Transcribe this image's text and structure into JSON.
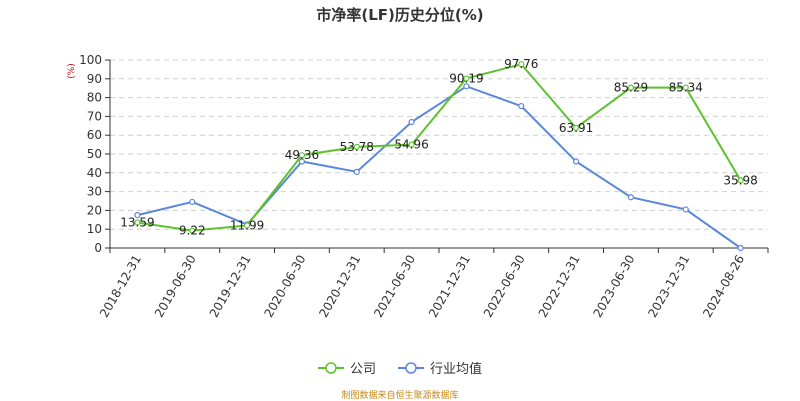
{
  "title": "市净率(LF)历史分位(%)",
  "unit_label": "(%)",
  "source": "制图数据来自恒生聚源数据库",
  "colors": {
    "company": "#5ec22f",
    "industry": "#5b87d8",
    "grid": "#cfcfcf",
    "axis": "#333333"
  },
  "chart_data": {
    "type": "line",
    "title": "市净率(LF)历史分位(%)",
    "ylabel": "(%)",
    "ylim": [
      0,
      100
    ],
    "yticks": [
      0,
      10,
      20,
      30,
      40,
      50,
      60,
      70,
      80,
      90,
      100
    ],
    "grid": true,
    "legend_position": "bottom",
    "categories": [
      "2018-12-31",
      "2019-06-30",
      "2019-12-31",
      "2020-06-30",
      "2020-12-31",
      "2021-06-30",
      "2021-12-31",
      "2022-06-30",
      "2022-12-31",
      "2023-06-30",
      "2023-12-31",
      "2024-08-26"
    ],
    "series": [
      {
        "name": "公司",
        "color": "#5ec22f",
        "values": [
          13.59,
          9.22,
          11.99,
          49.36,
          53.78,
          54.96,
          90.19,
          97.76,
          63.91,
          85.29,
          85.34,
          35.98
        ],
        "labels": [
          "13.59",
          "9.22",
          "11.99",
          "49.36",
          "53.78",
          "54.96",
          "90.19",
          "97.76",
          "63.91",
          "85.29",
          "85.34",
          "35.98"
        ]
      },
      {
        "name": "行业均值",
        "color": "#5b87d8",
        "values": [
          17.5,
          24.5,
          12.5,
          46.0,
          40.5,
          67.0,
          86.0,
          75.5,
          46.0,
          27.0,
          20.5,
          0.0
        ]
      }
    ]
  }
}
